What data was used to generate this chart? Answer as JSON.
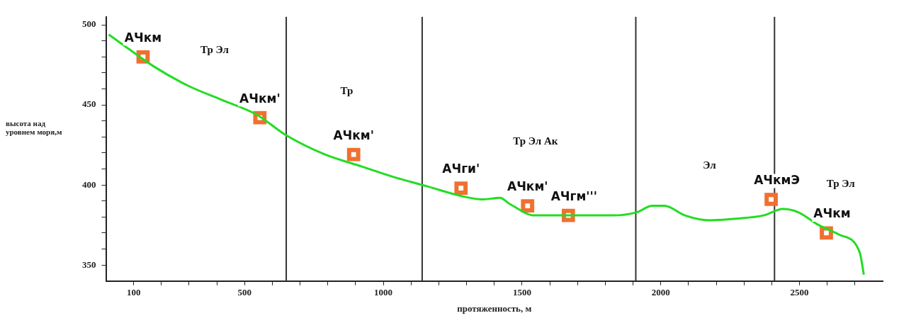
{
  "chart_data": {
    "type": "line",
    "xlabel": "протяженность, м",
    "ylabel": "высота над уровнем моря,м",
    "xlim": [
      0,
      2800
    ],
    "ylim": [
      340,
      505
    ],
    "xticks": [
      {
        "value": 100,
        "label": "100"
      },
      {
        "value": 200,
        "label": null
      },
      {
        "value": 300,
        "label": null
      },
      {
        "value": 400,
        "label": null
      },
      500,
      {
        "value": 600,
        "label": null
      },
      {
        "value": 700,
        "label": null
      },
      {
        "value": 800,
        "label": null
      },
      {
        "value": 900,
        "label": null
      },
      1000,
      {
        "value": 1100,
        "label": null
      },
      {
        "value": 1200,
        "label": null
      },
      {
        "value": 1300,
        "label": null
      },
      {
        "value": 1400,
        "label": null
      },
      1500,
      {
        "value": 1600,
        "label": null
      },
      {
        "value": 1700,
        "label": null
      },
      {
        "value": 1800,
        "label": null
      },
      {
        "value": 1900,
        "label": null
      },
      2000,
      {
        "value": 2100,
        "label": null
      },
      {
        "value": 2200,
        "label": null
      },
      {
        "value": 2300,
        "label": null
      },
      {
        "value": 2400,
        "label": null
      },
      2500,
      {
        "value": 2600,
        "label": null
      },
      {
        "value": 2700,
        "label": null
      }
    ],
    "yticks": [
      350,
      {
        "value": 360,
        "label": null
      },
      {
        "value": 370,
        "label": null
      },
      {
        "value": 380,
        "label": null
      },
      {
        "value": 390,
        "label": null
      },
      400,
      {
        "value": 410,
        "label": null
      },
      {
        "value": 420,
        "label": null
      },
      {
        "value": 430,
        "label": null
      },
      {
        "value": 440,
        "label": null
      },
      450,
      {
        "value": 460,
        "label": null
      },
      {
        "value": 470,
        "label": null
      },
      {
        "value": 480,
        "label": null
      },
      {
        "value": 490,
        "label": null
      },
      500
    ],
    "grid": false,
    "legend": false,
    "series": [
      {
        "color": "#22dd22",
        "x": [
          10,
          74,
          173,
          296,
          420,
          543,
          650,
          790,
          914,
          1037,
          1161,
          1284,
          1359,
          1420,
          1457,
          1546,
          1630,
          1729,
          1828,
          1914,
          1969,
          2013,
          2087,
          2174,
          2272,
          2371,
          2440,
          2495,
          2569,
          2643,
          2717,
          2732
        ],
        "values": [
          494,
          486,
          474,
          462,
          453,
          444,
          431,
          419,
          412,
          405,
          399,
          393,
          391,
          392,
          388,
          381,
          381,
          381,
          381,
          383,
          387,
          387,
          381,
          378,
          379,
          381,
          385,
          383,
          375,
          369,
          358,
          344
        ],
        "marker": "none",
        "line_style": "solid"
      },
      {
        "type": "scatter",
        "color": "#f07030",
        "x": [
          134,
          555,
          893,
          1280,
          1520,
          1667,
          2398,
          2597
        ],
        "values": [
          480,
          442,
          419,
          398,
          387,
          381,
          391,
          370
        ],
        "marker": "square"
      }
    ],
    "ref_lines": [
      {
        "axis": "x",
        "value": 650,
        "color": "#333333"
      },
      {
        "axis": "x",
        "value": 1140,
        "color": "#333333"
      },
      {
        "axis": "x",
        "value": 1910,
        "color": "#333333"
      },
      {
        "axis": "x",
        "value": 2410,
        "color": "#333333"
      }
    ],
    "annotations": [
      {
        "text": "АЧкм",
        "x": 134,
        "y": 480
      },
      {
        "text": "АЧкм'",
        "x": 555,
        "y": 442
      },
      {
        "text": "АЧкм'",
        "x": 893,
        "y": 419
      },
      {
        "text": "АЧги'",
        "x": 1280,
        "y": 398
      },
      {
        "text": "АЧкм'",
        "x": 1520,
        "y": 387
      },
      {
        "text": "АЧгм'''",
        "x": 1667,
        "y": 381
      },
      {
        "text": "АЧкмЭ",
        "x": 2398,
        "y": 391
      },
      {
        "text": "АЧкм",
        "x": 2597,
        "y": 370
      },
      "Тр Эл",
      "Тр",
      "Тр Эл Ак",
      "Эл",
      "Тр Эл"
    ]
  }
}
